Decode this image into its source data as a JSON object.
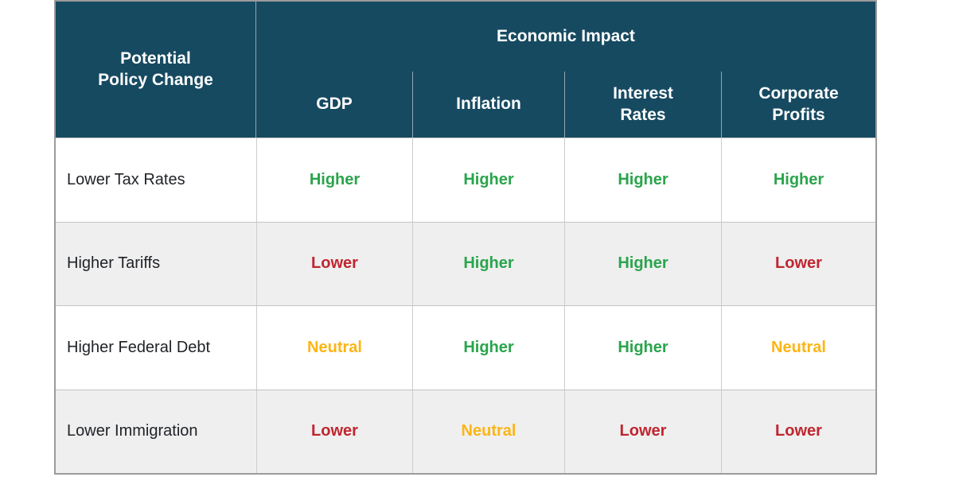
{
  "chart_data": {
    "type": "table",
    "group_header": "Economic Impact",
    "row_header": "Potential\nPolicy Change",
    "columns": [
      "GDP",
      "Inflation",
      "Interest\nRates",
      "Corporate\nProfits"
    ],
    "rows": [
      {
        "policy": "Lower Tax Rates",
        "impacts": [
          "Higher",
          "Higher",
          "Higher",
          "Higher"
        ]
      },
      {
        "policy": "Higher Tariffs",
        "impacts": [
          "Lower",
          "Higher",
          "Higher",
          "Lower"
        ]
      },
      {
        "policy": "Higher Federal Debt",
        "impacts": [
          "Neutral",
          "Higher",
          "Higher",
          "Neutral"
        ]
      },
      {
        "policy": "Lower Immigration",
        "impacts": [
          "Lower",
          "Neutral",
          "Lower",
          "Lower"
        ]
      }
    ]
  },
  "colors": {
    "higher": "#2aa44c",
    "lower": "#c1252f",
    "neutral": "#fcb514",
    "header_bg": "#164a61",
    "header_text": "#ffffff",
    "row_bg": "#ffffff",
    "row_alt_bg": "#efefef",
    "outer_border": "#9b9b9b",
    "inner_border": "#cccccc"
  }
}
